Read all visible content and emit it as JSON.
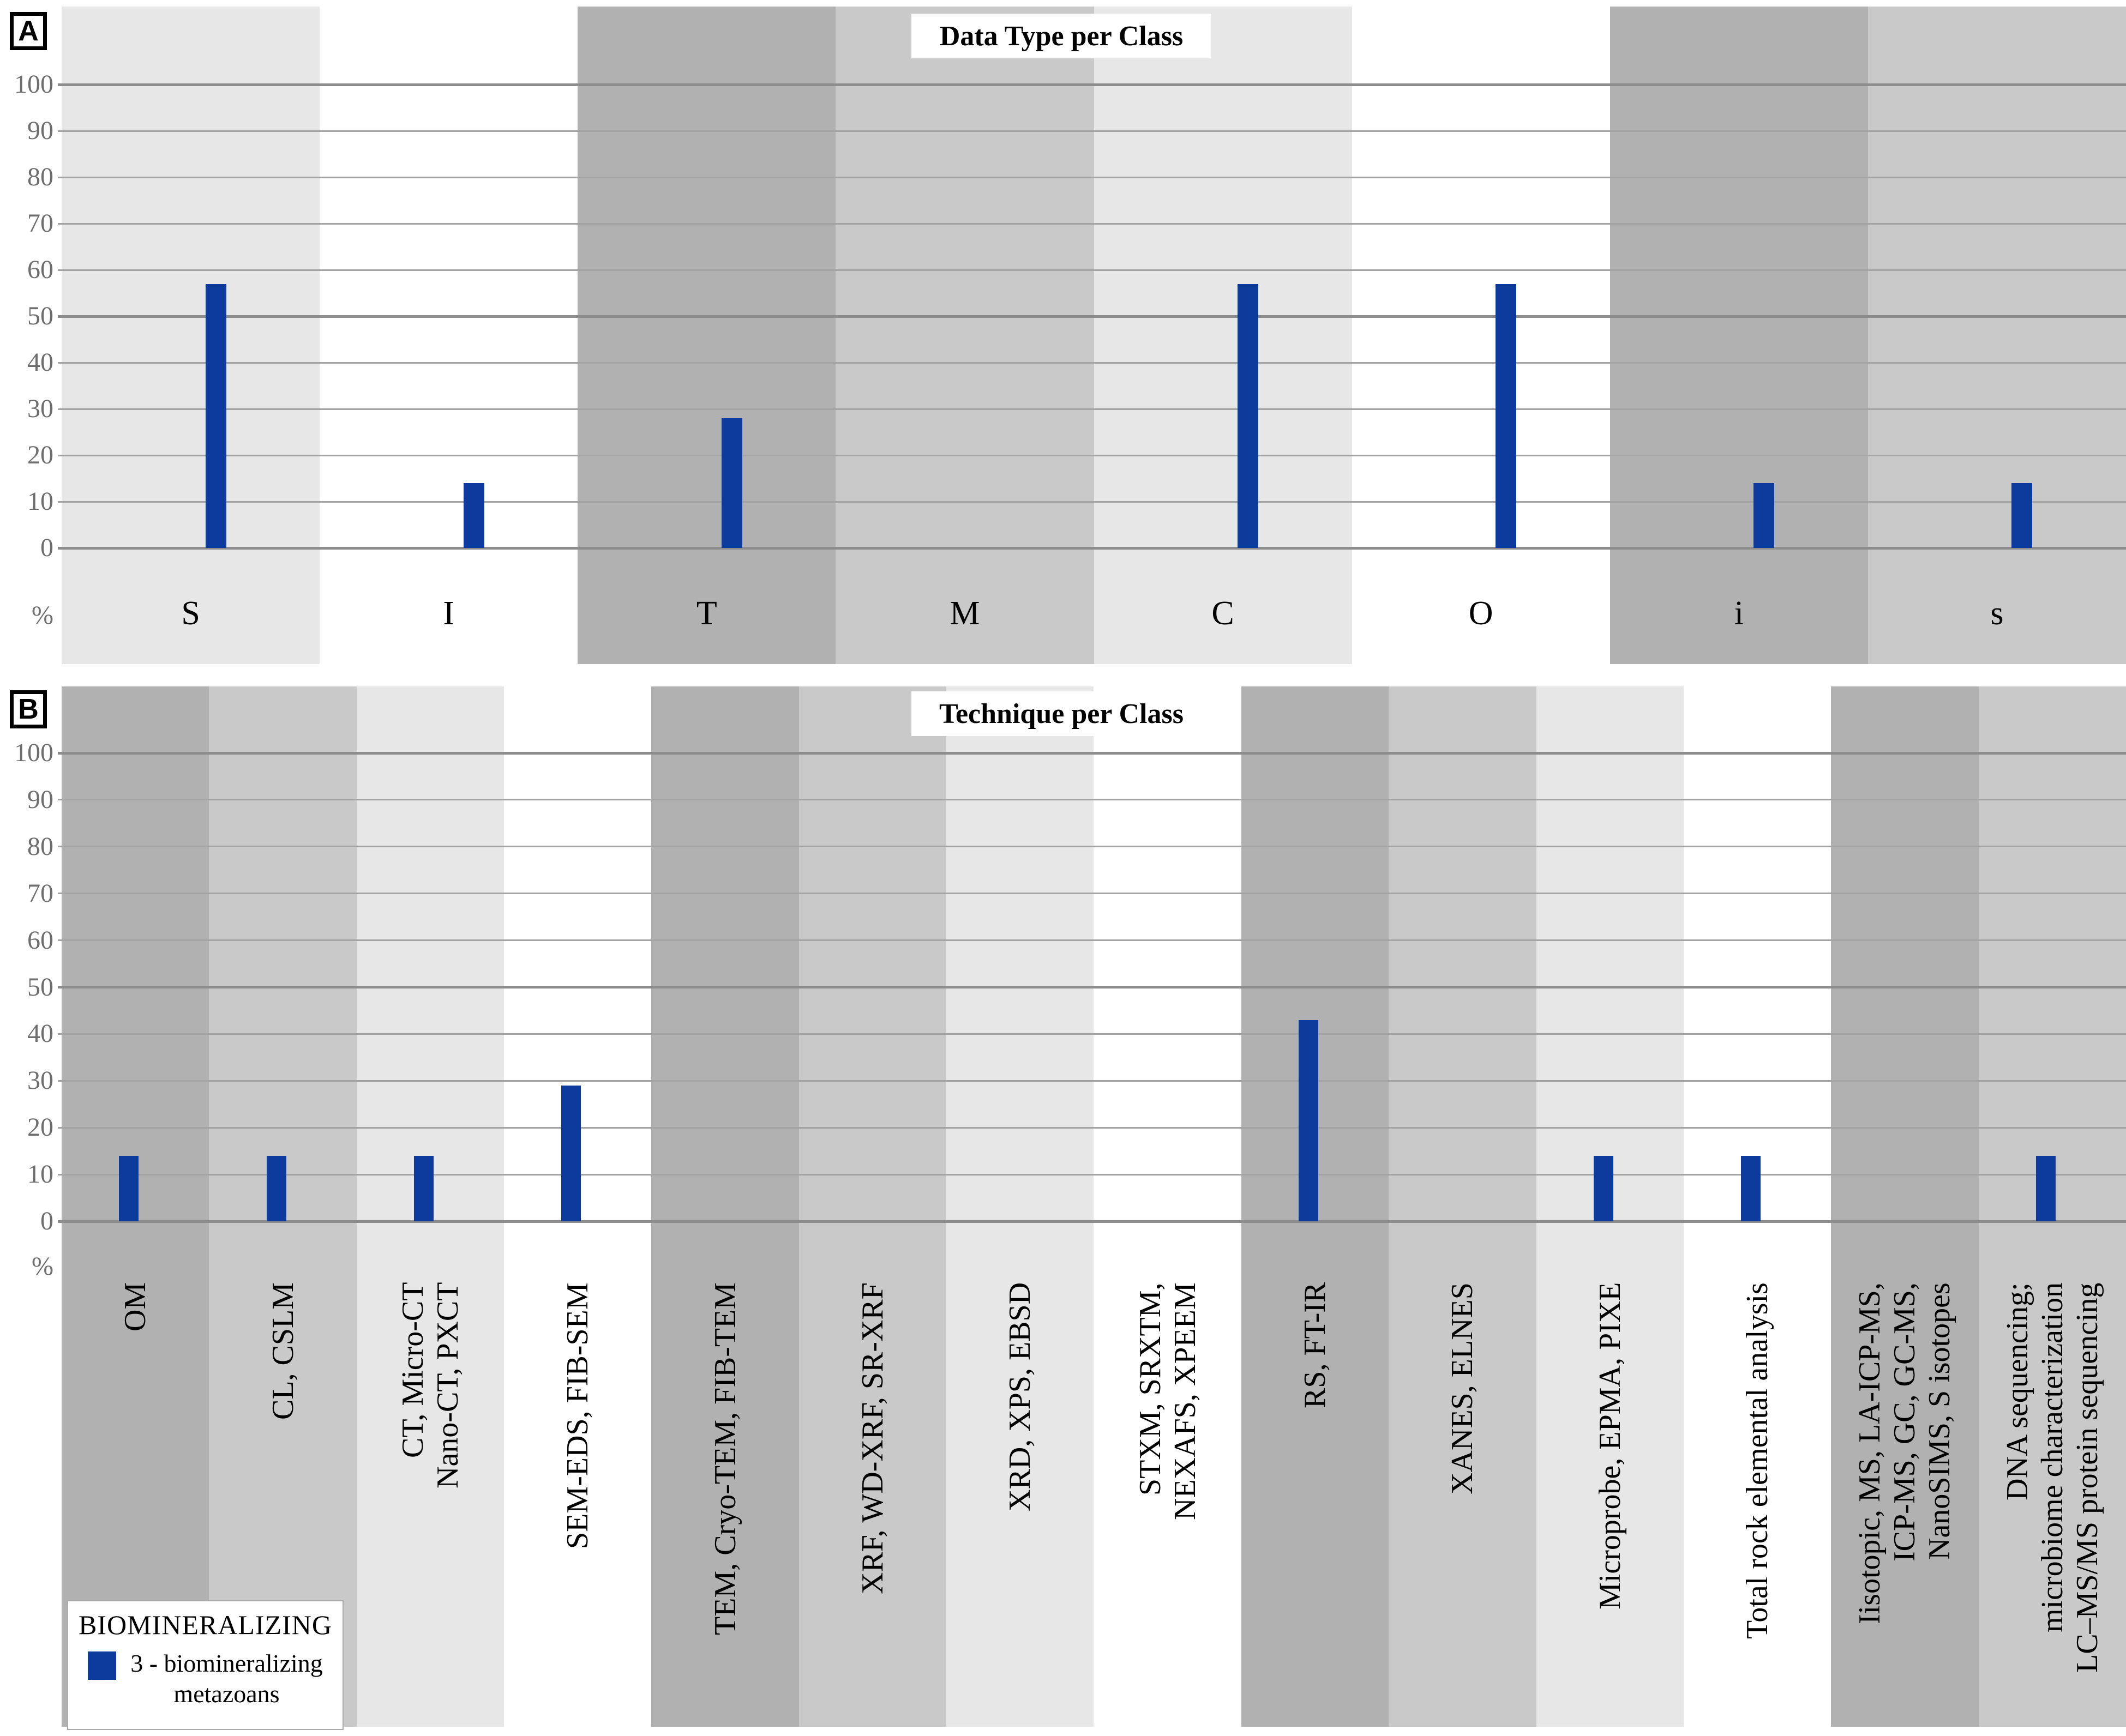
{
  "colors": {
    "bar": "#0c3b9d",
    "band_light": "#e7e7e7",
    "band_medium": "#c9c9c9",
    "band_dark": "#b1b1b1",
    "band_white": "#ffffff",
    "grid_minor": "#a3a3a3",
    "grid_major": "#8d8d8d",
    "tick_text": "#6e6e6e"
  },
  "panel_a": {
    "badge": "A",
    "title": "Data Type per Class",
    "percent_label": "%",
    "y_ticks": [
      100,
      90,
      80,
      70,
      60,
      50,
      40,
      30,
      20,
      10,
      0
    ],
    "categories": [
      "S",
      "I",
      "T",
      "M",
      "C",
      "O",
      "i",
      "s"
    ],
    "values": [
      57,
      14,
      28,
      0,
      57,
      57,
      14,
      14
    ],
    "band_colors": [
      "#e7e7e7",
      "#ffffff",
      "#b1b1b1",
      "#c9c9c9",
      "#e7e7e7",
      "#ffffff",
      "#b1b1b1",
      "#c9c9c9"
    ]
  },
  "panel_b": {
    "badge": "B",
    "title": "Technique per Class",
    "percent_label": "%",
    "y_ticks": [
      100,
      90,
      80,
      70,
      60,
      50,
      40,
      30,
      20,
      10,
      0
    ],
    "categories": [
      [
        "OM"
      ],
      [
        "CL, CSLM"
      ],
      [
        "CT, Micro-CT",
        "Nano-CT, PXCT"
      ],
      [
        "SEM-EDS, FIB-SEM"
      ],
      [
        "TEM, Cryo-TEM, FIB-TEM"
      ],
      [
        "XRF, WD-XRF, SR-XRF"
      ],
      [
        "XRD, XPS, EBSD"
      ],
      [
        "STXM, SRXTM,",
        "NEXAFS, XPEEM"
      ],
      [
        "RS, FT-IR"
      ],
      [
        "XANES, ELNES"
      ],
      [
        "Microprobe, EPMA, PIXE"
      ],
      [
        "Total rock elemental analysis"
      ],
      [
        "Iisotopic, MS, LA-ICP-MS,",
        "ICP-MS, GC, GC-MS,",
        "NanoSIMS, S isotopes"
      ],
      [
        "DNA sequencing;",
        "microbiome characterization",
        "LC–MS/MS protein sequencing"
      ]
    ],
    "values": [
      14,
      14,
      14,
      29,
      0,
      0,
      0,
      0,
      43,
      0,
      14,
      14,
      0,
      14
    ],
    "band_colors": [
      "#b1b1b1",
      "#c9c9c9",
      "#e7e7e7",
      "#ffffff",
      "#b1b1b1",
      "#c9c9c9",
      "#e7e7e7",
      "#ffffff",
      "#b1b1b1",
      "#c9c9c9",
      "#e7e7e7",
      "#ffffff",
      "#b1b1b1",
      "#c9c9c9"
    ]
  },
  "legend": {
    "title": "BIOMINERALIZING",
    "items": [
      {
        "label_line1": "3 - biomineralizing",
        "label_line2": "metazoans",
        "color": "#0c3b9d"
      }
    ]
  },
  "chart_data": [
    {
      "type": "bar",
      "title": "Data Type per Class",
      "categories": [
        "S",
        "I",
        "T",
        "M",
        "C",
        "O",
        "i",
        "s"
      ],
      "values": [
        57,
        14,
        28,
        0,
        57,
        57,
        14,
        14
      ],
      "series_name": "3 - biomineralizing metazoans",
      "xlabel": "",
      "ylabel": "%",
      "ylim": [
        0,
        100
      ],
      "grid": true,
      "legend_position": "none"
    },
    {
      "type": "bar",
      "title": "Technique per Class",
      "categories": [
        "OM",
        "CL, CSLM",
        "CT, Micro-CT Nano-CT, PXCT",
        "SEM-EDS, FIB-SEM",
        "TEM, Cryo-TEM, FIB-TEM",
        "XRF, WD-XRF, SR-XRF",
        "XRD, XPS, EBSD",
        "STXM, SRXTM, NEXAFS, XPEEM",
        "RS, FT-IR",
        "XANES, ELNES",
        "Microprobe, EPMA, PIXE",
        "Total rock elemental analysis",
        "Iisotopic, MS, LA-ICP-MS, ICP-MS, GC, GC-MS, NanoSIMS, S isotopes",
        "DNA sequencing; microbiome characterization LC–MS/MS protein sequencing"
      ],
      "values": [
        14,
        14,
        14,
        29,
        0,
        0,
        0,
        0,
        43,
        0,
        14,
        14,
        0,
        14
      ],
      "series_name": "3 - biomineralizing metazoans",
      "xlabel": "",
      "ylabel": "%",
      "ylim": [
        0,
        100
      ],
      "grid": true,
      "legend_position": "bottom-left"
    }
  ]
}
